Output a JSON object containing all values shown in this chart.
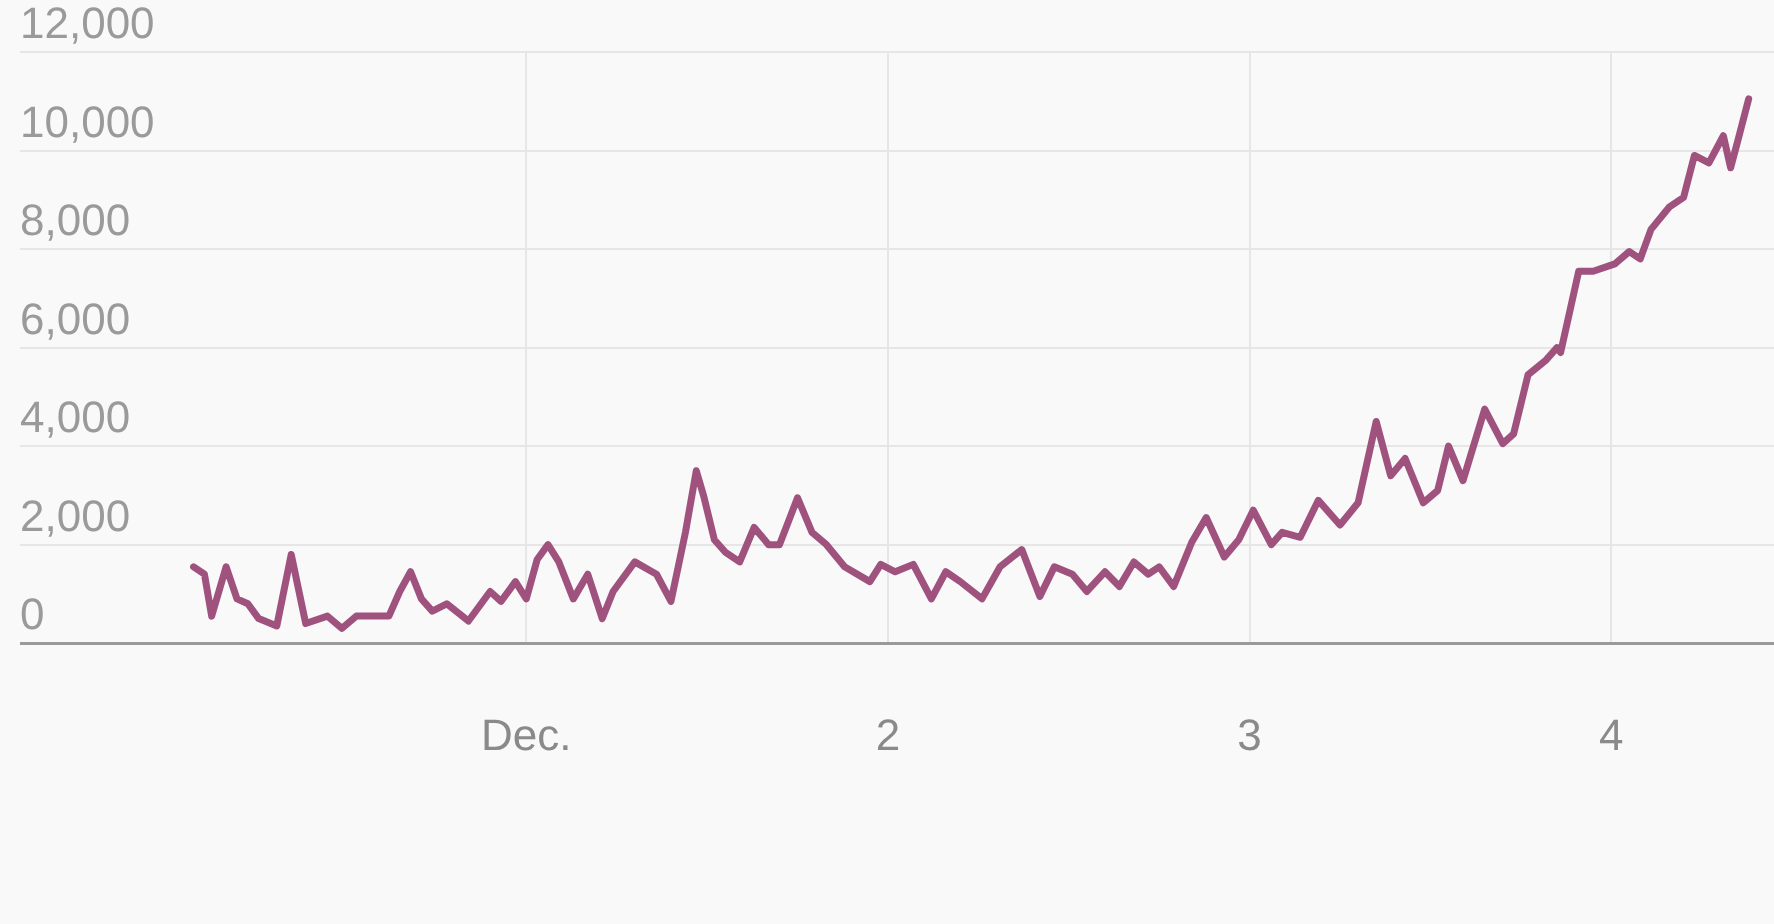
{
  "chart_data": {
    "type": "line",
    "x": [
      0.08,
      0.11,
      0.13,
      0.17,
      0.2,
      0.23,
      0.26,
      0.31,
      0.35,
      0.39,
      0.45,
      0.49,
      0.53,
      0.62,
      0.65,
      0.68,
      0.71,
      0.74,
      0.78,
      0.84,
      0.9,
      0.93,
      0.97,
      1.0,
      1.03,
      1.06,
      1.09,
      1.13,
      1.17,
      1.21,
      1.24,
      1.3,
      1.36,
      1.4,
      1.44,
      1.47,
      1.49,
      1.52,
      1.55,
      1.59,
      1.63,
      1.67,
      1.7,
      1.75,
      1.79,
      1.83,
      1.88,
      1.95,
      1.98,
      2.02,
      2.07,
      2.12,
      2.16,
      2.2,
      2.26,
      2.31,
      2.37,
      2.42,
      2.46,
      2.51,
      2.55,
      2.6,
      2.64,
      2.68,
      2.72,
      2.75,
      2.79,
      2.84,
      2.88,
      2.93,
      2.97,
      3.01,
      3.06,
      3.09,
      3.14,
      3.19,
      3.25,
      3.3,
      3.35,
      3.39,
      3.43,
      3.48,
      3.52,
      3.55,
      3.59,
      3.65,
      3.7,
      3.73,
      3.77,
      3.82,
      3.85,
      3.86,
      3.91,
      3.95,
      4.01,
      4.05,
      4.08,
      4.11,
      4.16,
      4.2,
      4.23,
      4.27,
      4.31,
      4.33,
      4.35,
      4.38
    ],
    "series": [
      {
        "color": "#a0527f",
        "values": [
          1550,
          1400,
          550,
          1550,
          900,
          800,
          500,
          350,
          1800,
          400,
          550,
          300,
          550,
          550,
          1050,
          1450,
          900,
          650,
          800,
          450,
          1050,
          850,
          1250,
          900,
          1700,
          2000,
          1650,
          900,
          1400,
          500,
          1050,
          1650,
          1400,
          850,
          2250,
          3500,
          3000,
          2100,
          1850,
          1650,
          2350,
          2000,
          2000,
          2950,
          2250,
          2000,
          1550,
          1250,
          1600,
          1450,
          1600,
          900,
          1450,
          1250,
          900,
          1550,
          1900,
          950,
          1550,
          1400,
          1050,
          1450,
          1150,
          1650,
          1400,
          1550,
          1150,
          2050,
          2550,
          1750,
          2100,
          2700,
          2000,
          2250,
          2150,
          2900,
          2400,
          2850,
          4500,
          3400,
          3750,
          2850,
          3100,
          4000,
          3300,
          4750,
          4050,
          4250,
          5450,
          5750,
          6000,
          5900,
          7550,
          7550,
          7700,
          7950,
          7800,
          8400,
          8850,
          9050,
          9900,
          9750,
          10300,
          9650,
          10200,
          11050
        ]
      }
    ],
    "xlim": [
      -0.4,
      4.45
    ],
    "xticks": [
      {
        "value": 1,
        "label": "Dec."
      },
      2,
      3,
      4
    ],
    "ylim": [
      0,
      12000
    ],
    "yticks": [
      0,
      {
        "value": 2000,
        "label": "2,000"
      },
      {
        "value": 4000,
        "label": "4,000"
      },
      {
        "value": 6000,
        "label": "6,000"
      },
      {
        "value": 8000,
        "label": "8,000"
      },
      {
        "value": 10000,
        "label": "10,000"
      },
      {
        "value": 12000,
        "label": "12,000"
      }
    ],
    "grid": true,
    "marker": "none",
    "line_style": "solid"
  }
}
